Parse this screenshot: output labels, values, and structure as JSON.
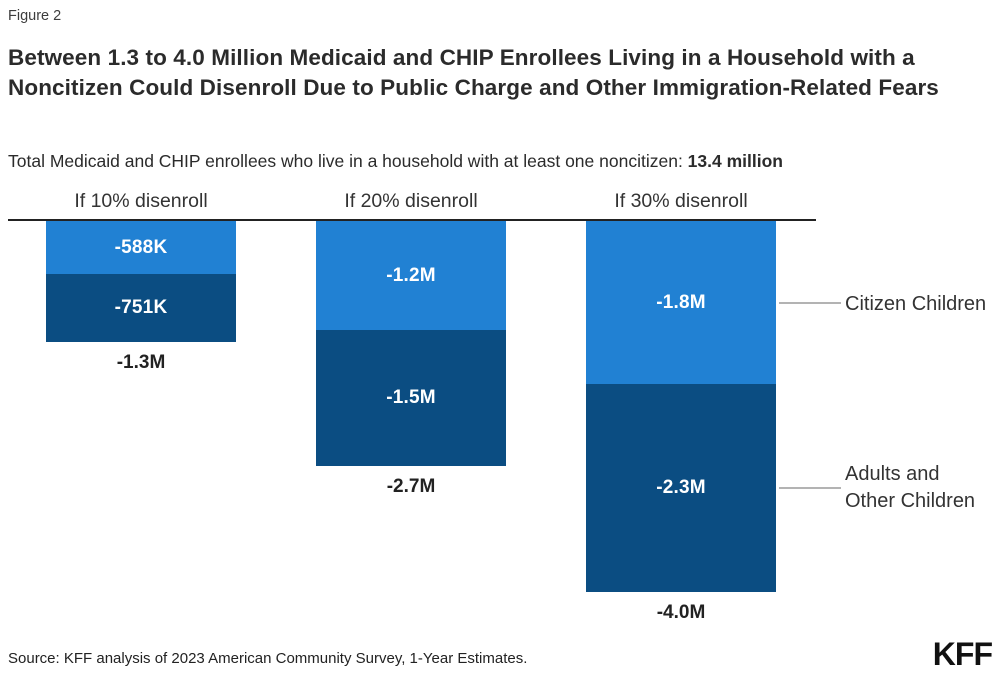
{
  "figure_label": "Figure 2",
  "title": "Between 1.3 to 4.0 Million Medicaid and CHIP Enrollees Living in a Household with a Noncitizen Could Disenroll Due to Public Charge and Other Immigration-Related Fears",
  "subtitle_prefix": "Total Medicaid and CHIP enrollees who live in a household with at least one noncitizen: ",
  "subtitle_bold": "13.4 million",
  "source": "Source: KFF analysis of 2023 American Community Survey, 1-Year Estimates.",
  "logo_text": "KFF",
  "colors": {
    "citizen_children": "#2181d3",
    "adults_other_children": "#0b4d82",
    "axis_line": "#222222",
    "connector_line": "#b3b3b3",
    "bar_value_text": "#ffffff"
  },
  "legend": {
    "item1": "Citizen Children",
    "item2": "Adults and Other Children"
  },
  "chart_data": {
    "type": "bar",
    "stacked": true,
    "orientation": "downward-from-zero-line",
    "unit": "enrollees (negative change)",
    "categories": [
      "If 10% disenroll",
      "If 20% disenroll",
      "If 30% disenroll"
    ],
    "series": [
      {
        "name": "Citizen Children",
        "color": "#2181d3",
        "values_thousands": [
          -588,
          -1200,
          -1800
        ],
        "labels": [
          "-588K",
          "-1.2M",
          "-1.8M"
        ]
      },
      {
        "name": "Adults and Other Children",
        "color": "#0b4d82",
        "values_thousands": [
          -751,
          -1500,
          -2300
        ],
        "labels": [
          "-751K",
          "-1.5M",
          "-2.3M"
        ]
      }
    ],
    "totals": [
      "-1.3M",
      "-2.7M",
      "-4.0M"
    ],
    "legend_position": "right",
    "grid": false
  }
}
